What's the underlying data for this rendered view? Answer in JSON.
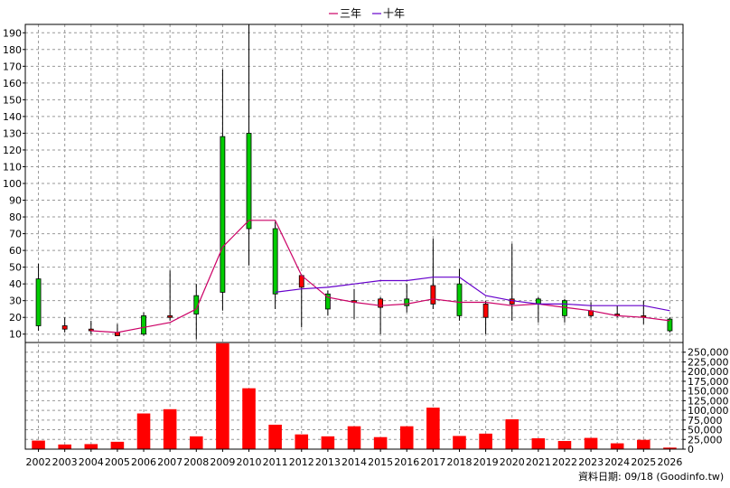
{
  "legend": [
    {
      "label": "三年",
      "color": "#cc0066"
    },
    {
      "label": "十年",
      "color": "#6600cc"
    }
  ],
  "footer": "資料日期: 09/18  (Goodinfo.tw)",
  "colors": {
    "up": "#00cc00",
    "down": "#ff0000",
    "volume": "#ff0000",
    "grid": "#999999"
  },
  "chart_data": {
    "type": "candlestick+line+bar",
    "x_categories": [
      "2002",
      "2003",
      "2004",
      "2005",
      "2006",
      "2007",
      "2008",
      "2009",
      "2010",
      "2011",
      "2012",
      "2013",
      "2014",
      "2015",
      "2016",
      "2017",
      "2018",
      "2019",
      "2020",
      "2021",
      "2022",
      "2023",
      "2024",
      "2025",
      "2026"
    ],
    "price_axis": {
      "ylim": [
        5,
        195
      ],
      "ticks": [
        10,
        20,
        30,
        40,
        50,
        60,
        70,
        80,
        90,
        100,
        110,
        120,
        130,
        140,
        150,
        160,
        170,
        180,
        190
      ]
    },
    "volume_axis": {
      "ylim": [
        0,
        275000
      ],
      "ticks": [
        0,
        25000,
        50000,
        75000,
        100000,
        125000,
        150000,
        175000,
        200000,
        225000,
        250000
      ],
      "tick_labels": [
        "0",
        "25,000",
        "50,000",
        "75,000",
        "100,000",
        "125,000",
        "150,000",
        "175,000",
        "200,000",
        "225,000",
        "250,000"
      ]
    },
    "candles": [
      {
        "year": "2002",
        "open": 15,
        "high": 52,
        "low": 12,
        "close": 43
      },
      {
        "year": "2003",
        "open": 15,
        "high": 20,
        "low": 11,
        "close": 13
      },
      {
        "year": "2004",
        "open": 13,
        "high": 18,
        "low": 10,
        "close": 12
      },
      {
        "year": "2005",
        "open": 11,
        "high": 16,
        "low": 9,
        "close": 9
      },
      {
        "year": "2006",
        "open": 10,
        "high": 23,
        "low": 9,
        "close": 21
      },
      {
        "year": "2007",
        "open": 21,
        "high": 48,
        "low": 18,
        "close": 20
      },
      {
        "year": "2008",
        "open": 22,
        "high": 40,
        "low": 7,
        "close": 33
      },
      {
        "year": "2009",
        "open": 35,
        "high": 168,
        "low": 24,
        "close": 128
      },
      {
        "year": "2010",
        "open": 73,
        "high": 195,
        "low": 51,
        "close": 130
      },
      {
        "year": "2011",
        "open": 34,
        "high": 77,
        "low": 25,
        "close": 73
      },
      {
        "year": "2012",
        "open": 45,
        "high": 45,
        "low": 14,
        "close": 38
      },
      {
        "year": "2013",
        "open": 25,
        "high": 36,
        "low": 21,
        "close": 34
      },
      {
        "year": "2014",
        "open": 30,
        "high": 37,
        "low": 19,
        "close": 29
      },
      {
        "year": "2015",
        "open": 31,
        "high": 32,
        "low": 10,
        "close": 26
      },
      {
        "year": "2016",
        "open": 27,
        "high": 40,
        "low": 23,
        "close": 31
      },
      {
        "year": "2017",
        "open": 39,
        "high": 67,
        "low": 25,
        "close": 28
      },
      {
        "year": "2018",
        "open": 21,
        "high": 49,
        "low": 18,
        "close": 40
      },
      {
        "year": "2019",
        "open": 28,
        "high": 30,
        "low": 10,
        "close": 20
      },
      {
        "year": "2020",
        "open": 31,
        "high": 64,
        "low": 18,
        "close": 28
      },
      {
        "year": "2021",
        "open": 28,
        "high": 32,
        "low": 17,
        "close": 31
      },
      {
        "year": "2022",
        "open": 21,
        "high": 31,
        "low": 17,
        "close": 30
      },
      {
        "year": "2023",
        "open": 24,
        "high": 29,
        "low": 20,
        "close": 21
      },
      {
        "year": "2024",
        "open": 22,
        "high": 27,
        "low": 20,
        "close": 21
      },
      {
        "year": "2025",
        "open": 21,
        "high": 30,
        "low": 16,
        "close": 20
      },
      {
        "year": "2026",
        "open": 12,
        "high": 20,
        "low": 11,
        "close": 19
      }
    ],
    "ma3": {
      "name": "三年",
      "start_index": 2,
      "values": [
        12,
        11,
        14,
        17,
        25,
        62,
        78,
        78,
        45,
        32,
        29,
        27,
        28,
        31,
        29,
        29,
        27,
        28,
        26,
        24,
        21,
        20,
        18
      ]
    },
    "ma10": {
      "name": "十年",
      "start_index": 9,
      "values": [
        35,
        37,
        38,
        40,
        42,
        42,
        44,
        44,
        33,
        30,
        28,
        28,
        27,
        27,
        27,
        24
      ]
    },
    "volume": [
      22000,
      12000,
      13000,
      19000,
      92000,
      103000,
      33000,
      273000,
      157000,
      63000,
      38000,
      33000,
      59000,
      31000,
      59000,
      107000,
      34000,
      40000,
      77000,
      28000,
      21000,
      29000,
      15000,
      24000,
      4000
    ]
  }
}
